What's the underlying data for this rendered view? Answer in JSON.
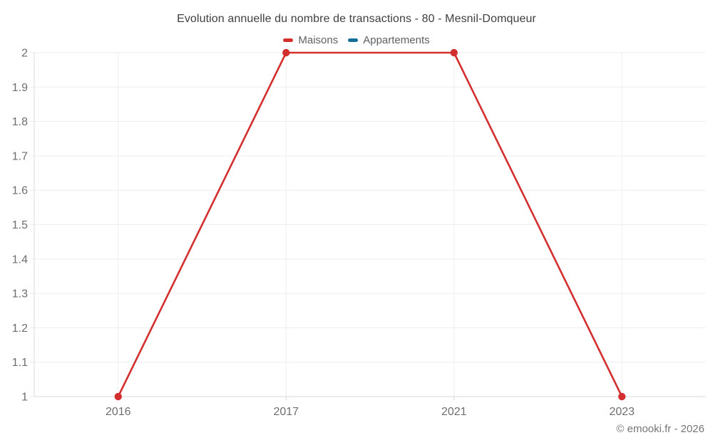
{
  "chart": {
    "footer": "© emooki.fr - 2026"
  },
  "chart_data": {
    "type": "line",
    "title": "Evolution annuelle du nombre de transactions - 80 - Mesnil-Domqueur",
    "categories": [
      "2016",
      "2017",
      "2021",
      "2023"
    ],
    "series": [
      {
        "name": "Maisons",
        "color": "#d32f2f",
        "values": [
          1,
          2,
          2,
          1
        ]
      },
      {
        "name": "Appartements",
        "color": "#146e96",
        "values": []
      }
    ],
    "ylim": [
      1,
      2
    ],
    "ytick_step": 0.1,
    "ytick_labels": [
      "1",
      "1.1",
      "1.2",
      "1.3",
      "1.4",
      "1.5",
      "1.6",
      "1.7",
      "1.8",
      "1.9",
      "2"
    ],
    "grid": true,
    "legend_position": "top",
    "marker_radius": 5.2,
    "line_width": 2.6,
    "colors": {
      "grid": "#ededed",
      "axis": "#d9d9d9",
      "tick_label": "#6e6e6e",
      "title_text": "#3f3f3f",
      "legend_text": "#5d6164",
      "footer_text": "#757575",
      "background": "#ffffff"
    }
  }
}
